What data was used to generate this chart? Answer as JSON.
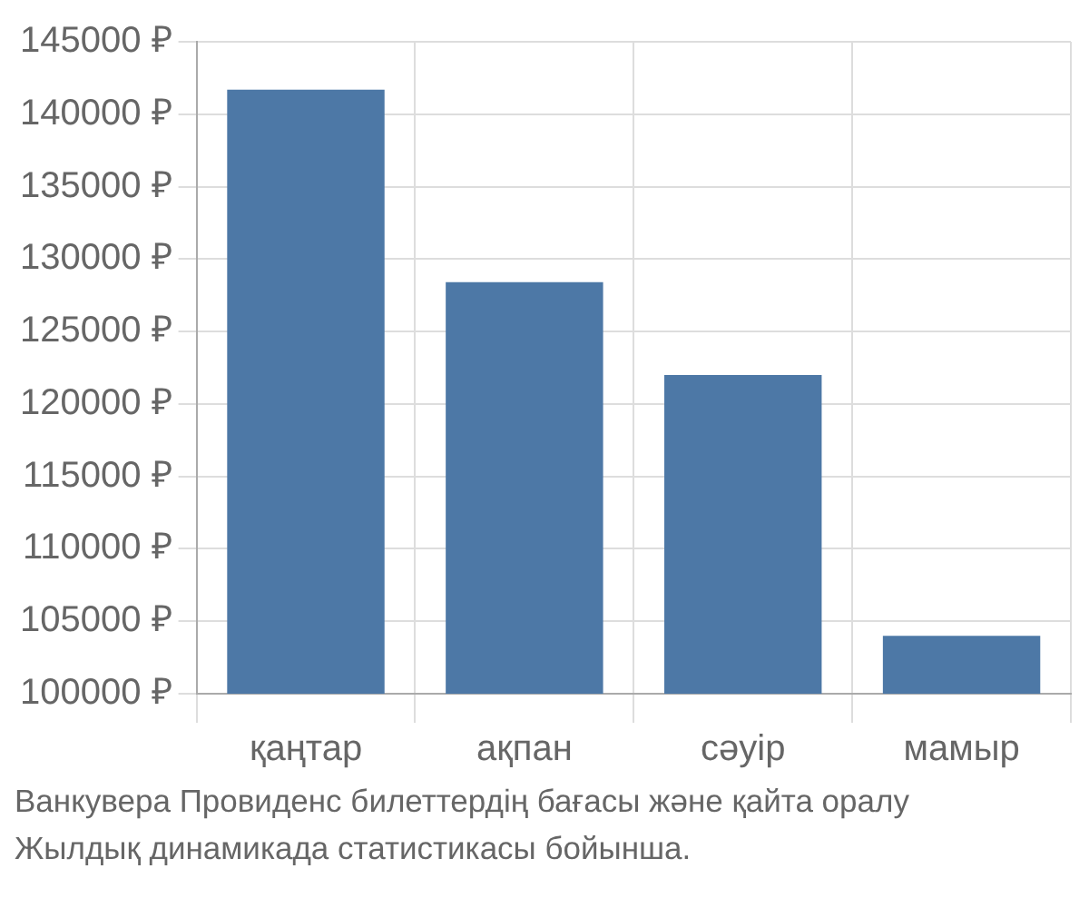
{
  "chart_data": {
    "type": "bar",
    "categories": [
      "қаңтар",
      "ақпан",
      "сәуір",
      "мамыр"
    ],
    "values": [
      141700,
      128400,
      122000,
      104000
    ],
    "color": "#4d78a6",
    "ylim": [
      100000,
      145000
    ],
    "yticks": [
      {
        "value": 100000,
        "label": "100000 ₽"
      },
      {
        "value": 105000,
        "label": "105000 ₽"
      },
      {
        "value": 110000,
        "label": "110000 ₽"
      },
      {
        "value": 115000,
        "label": "115000 ₽"
      },
      {
        "value": 120000,
        "label": "120000 ₽"
      },
      {
        "value": 125000,
        "label": "125000 ₽"
      },
      {
        "value": 130000,
        "label": "130000 ₽"
      },
      {
        "value": 135000,
        "label": "135000 ₽"
      },
      {
        "value": 140000,
        "label": "140000 ₽"
      },
      {
        "value": 145000,
        "label": "145000 ₽"
      }
    ],
    "grid": true,
    "annotations": [
      "Ванкувера Провиденс билеттердің бағасы және қайта оралу",
      "Жылдық динамикада статистикасы бойынша."
    ]
  }
}
